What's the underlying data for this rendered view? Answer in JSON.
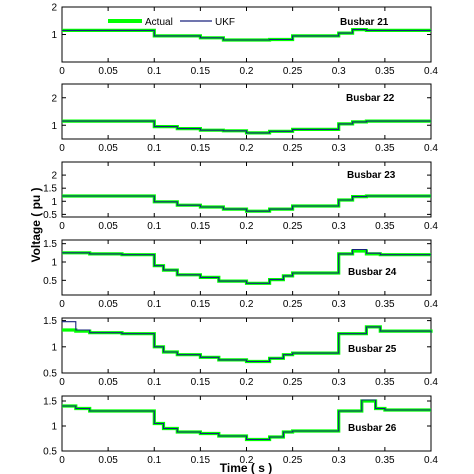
{
  "figure": {
    "xlabel": "Time ( s )",
    "ylabel": "Voltage ( pu )"
  },
  "legend": [
    {
      "name": "Actual",
      "color": "#00ff00"
    },
    {
      "name": "UKF",
      "color": "#1a237e"
    }
  ],
  "colors": {
    "actual": "#00ff00",
    "ukf": "#1a237e",
    "axes": "#000000"
  },
  "chart_data": [
    {
      "type": "line",
      "label": "Busbar 21",
      "xlim": [
        0,
        0.4
      ],
      "ylim": [
        0,
        2
      ],
      "xticks": [
        "0",
        "0.05",
        "0.1",
        "0.15",
        "0.2",
        "0.25",
        "0.3",
        "0.35",
        "0.4"
      ],
      "yticks": [
        {
          "v": 1,
          "t": "1"
        },
        {
          "v": 2,
          "t": "2"
        }
      ],
      "x": [
        0,
        0.1,
        0.15,
        0.175,
        0.2,
        0.225,
        0.25,
        0.3,
        0.315,
        0.33,
        0.4
      ],
      "series": [
        {
          "name": "Actual",
          "values": [
            1.15,
            0.95,
            0.88,
            0.8,
            0.8,
            0.82,
            0.95,
            1.05,
            1.18,
            1.15,
            1.15
          ]
        },
        {
          "name": "UKF",
          "values": [
            1.15,
            0.95,
            0.88,
            0.8,
            0.8,
            0.82,
            0.95,
            1.05,
            1.18,
            1.15,
            1.15
          ]
        }
      ]
    },
    {
      "type": "line",
      "label": "Busbar 22",
      "xlim": [
        0,
        0.4
      ],
      "ylim": [
        0.5,
        2.5
      ],
      "xticks": [
        "0",
        "0.05",
        "0.1",
        "0.15",
        "0.2",
        "0.25",
        "0.3",
        "0.35",
        "0.4"
      ],
      "yticks": [
        {
          "v": 1,
          "t": "1"
        },
        {
          "v": 2,
          "t": "2"
        }
      ],
      "x": [
        0,
        0.1,
        0.125,
        0.15,
        0.175,
        0.2,
        0.225,
        0.25,
        0.3,
        0.315,
        0.33,
        0.4
      ],
      "series": [
        {
          "name": "Actual",
          "values": [
            1.15,
            0.95,
            0.88,
            0.82,
            0.8,
            0.72,
            0.78,
            0.85,
            1.05,
            1.12,
            1.15,
            1.15
          ]
        },
        {
          "name": "UKF",
          "values": [
            1.15,
            0.95,
            0.88,
            0.82,
            0.8,
            0.72,
            0.78,
            0.85,
            1.05,
            1.12,
            1.15,
            1.15
          ]
        }
      ]
    },
    {
      "type": "line",
      "label": "Busbar 23",
      "xlim": [
        0,
        0.4
      ],
      "ylim": [
        0.4,
        2.5
      ],
      "xticks": [
        "0",
        "0.05",
        "0.1",
        "0.15",
        "0.2",
        "0.25",
        "0.3",
        "0.35",
        "0.4"
      ],
      "yticks": [
        {
          "v": 0.5,
          "t": "0.5"
        },
        {
          "v": 1,
          "t": "1"
        },
        {
          "v": 1.5,
          "t": "1.5"
        },
        {
          "v": 2,
          "t": "2"
        }
      ],
      "x": [
        0,
        0.1,
        0.125,
        0.15,
        0.175,
        0.2,
        0.225,
        0.25,
        0.3,
        0.315,
        0.33,
        0.4
      ],
      "series": [
        {
          "name": "Actual",
          "values": [
            1.2,
            0.98,
            0.85,
            0.78,
            0.7,
            0.62,
            0.7,
            0.82,
            1.05,
            1.18,
            1.2,
            1.2
          ]
        },
        {
          "name": "UKF",
          "values": [
            1.2,
            0.98,
            0.85,
            0.78,
            0.7,
            0.62,
            0.7,
            0.82,
            1.05,
            1.18,
            1.2,
            1.2
          ]
        }
      ]
    },
    {
      "type": "line",
      "label": "Busbar 24",
      "xlim": [
        0,
        0.4
      ],
      "ylim": [
        0.1,
        1.6
      ],
      "xticks": [
        "0",
        "0.05",
        "0.1",
        "0.15",
        "0.2",
        "0.25",
        "0.3",
        "0.35",
        "0.4"
      ],
      "yticks": [
        {
          "v": 0.5,
          "t": "0.5"
        },
        {
          "v": 1,
          "t": "1"
        },
        {
          "v": 1.5,
          "t": "1.5"
        }
      ],
      "x": [
        0,
        0.03,
        0.065,
        0.1,
        0.11,
        0.125,
        0.15,
        0.17,
        0.2,
        0.225,
        0.24,
        0.25,
        0.3,
        0.315,
        0.33,
        0.345,
        0.4
      ],
      "series": [
        {
          "name": "Actual",
          "values": [
            1.25,
            1.22,
            1.2,
            0.9,
            0.78,
            0.65,
            0.58,
            0.48,
            0.42,
            0.52,
            0.62,
            0.7,
            1.22,
            1.3,
            1.22,
            1.2,
            1.2
          ]
        },
        {
          "name": "UKF",
          "values": [
            1.25,
            1.22,
            1.2,
            0.9,
            0.78,
            0.65,
            0.58,
            0.48,
            0.42,
            0.52,
            0.62,
            0.7,
            1.22,
            1.34,
            1.24,
            1.2,
            1.2
          ]
        }
      ]
    },
    {
      "type": "line",
      "label": "Busbar 25",
      "xlim": [
        0,
        0.4
      ],
      "ylim": [
        0.5,
        1.55
      ],
      "xticks": [
        "0",
        "0.05",
        "0.1",
        "0.15",
        "0.2",
        "0.25",
        "0.3",
        "0.35",
        "0.4"
      ],
      "yticks": [
        {
          "v": 0.5,
          "t": "0.5"
        },
        {
          "v": 1,
          "t": "1"
        },
        {
          "v": 1.5,
          "t": "1.5"
        }
      ],
      "x": [
        0,
        0.015,
        0.03,
        0.065,
        0.1,
        0.11,
        0.125,
        0.15,
        0.17,
        0.2,
        0.225,
        0.24,
        0.25,
        0.3,
        0.31,
        0.33,
        0.345,
        0.4
      ],
      "series": [
        {
          "name": "Actual",
          "values": [
            1.32,
            1.3,
            1.27,
            1.25,
            1.0,
            0.9,
            0.85,
            0.8,
            0.75,
            0.72,
            0.78,
            0.85,
            0.88,
            1.25,
            1.25,
            1.38,
            1.3,
            1.27
          ]
        },
        {
          "name": "UKF",
          "values": [
            1.48,
            1.32,
            1.27,
            1.25,
            1.0,
            0.9,
            0.85,
            0.8,
            0.75,
            0.72,
            0.78,
            0.85,
            0.88,
            1.25,
            1.25,
            1.38,
            1.3,
            1.27
          ]
        }
      ]
    },
    {
      "type": "line",
      "label": "Busbar 26",
      "xlim": [
        0,
        0.4
      ],
      "ylim": [
        0.5,
        1.6
      ],
      "xticks": [
        "0",
        "0.05",
        "0.1",
        "0.15",
        "0.2",
        "0.25",
        "0.3",
        "0.35",
        "0.4"
      ],
      "yticks": [
        {
          "v": 0.5,
          "t": "0.5"
        },
        {
          "v": 1,
          "t": "1"
        },
        {
          "v": 1.5,
          "t": "1.5"
        }
      ],
      "x": [
        0,
        0.015,
        0.03,
        0.065,
        0.1,
        0.11,
        0.125,
        0.15,
        0.17,
        0.2,
        0.225,
        0.24,
        0.25,
        0.3,
        0.31,
        0.325,
        0.34,
        0.35,
        0.4
      ],
      "series": [
        {
          "name": "Actual",
          "values": [
            1.4,
            1.35,
            1.3,
            1.3,
            1.05,
            0.95,
            0.88,
            0.85,
            0.8,
            0.73,
            0.78,
            0.88,
            0.9,
            1.3,
            1.3,
            1.5,
            1.35,
            1.32,
            1.32
          ]
        },
        {
          "name": "UKF",
          "values": [
            1.4,
            1.35,
            1.3,
            1.3,
            1.05,
            0.95,
            0.88,
            0.85,
            0.8,
            0.73,
            0.78,
            0.88,
            0.9,
            1.3,
            1.3,
            1.52,
            1.35,
            1.32,
            1.32
          ]
        }
      ]
    }
  ]
}
